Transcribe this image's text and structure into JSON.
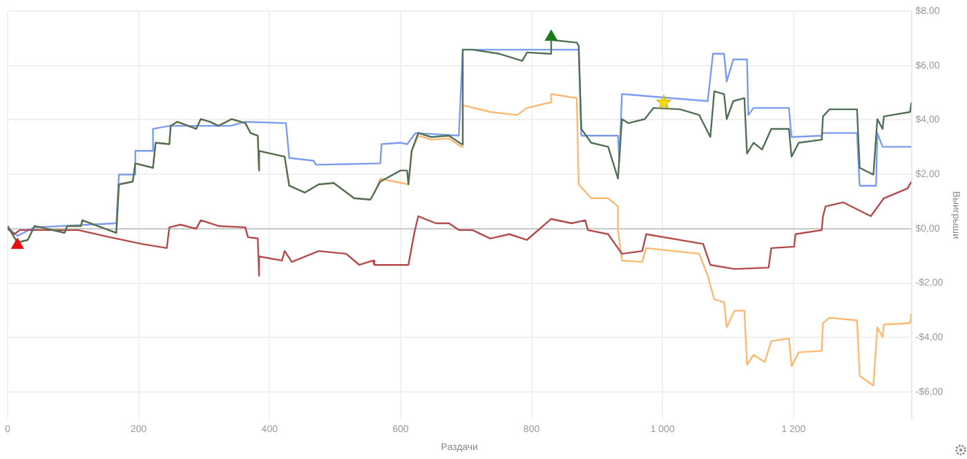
{
  "chart_data": {
    "type": "line",
    "xlabel": "Раздачи",
    "ylabel": "Выигрыши",
    "xlim": [
      0,
      1380
    ],
    "ylim": [
      -7,
      8
    ],
    "xticks": [
      0,
      200,
      400,
      600,
      800,
      {
        "value": 1000,
        "label": "1 000"
      },
      {
        "value": 1200,
        "label": "1 200"
      }
    ],
    "yticks": [
      {
        "value": 8,
        "label": "$8,00"
      },
      {
        "value": 6,
        "label": "$6,00"
      },
      {
        "value": 4,
        "label": "$4,00"
      },
      {
        "value": 2,
        "label": "$2,00"
      },
      {
        "value": 0,
        "label": "$0,00"
      },
      {
        "value": -2,
        "label": "-$2,00"
      },
      {
        "value": -4,
        "label": "-$4,00"
      },
      {
        "value": -6,
        "label": "-$6,00"
      }
    ],
    "grid": true,
    "legend": false,
    "marker": "none",
    "line_style": "solid",
    "ref_lines": [
      {
        "axis": "y",
        "value": 0,
        "color": "#c8c8c8"
      }
    ],
    "series": [
      {
        "type": "line",
        "color": "#7a9cf0",
        "x": [
          0,
          15,
          41,
          166,
          170,
          195,
          195,
          222,
          222,
          247,
          340,
          363,
          425,
          430,
          467,
          471,
          569,
          571,
          600,
          610,
          623,
          689,
          695,
          872,
          876,
          932,
          934,
          938,
          1069,
          1077,
          1094,
          1098,
          1108,
          1129,
          1131,
          1139,
          1193,
          1197,
          1243,
          1245,
          1297,
          1301,
          1326,
          1328,
          1336,
          1380
        ],
        "values": [
          0.05,
          -0.26,
          0.05,
          0.2,
          1.99,
          1.99,
          2.86,
          2.86,
          3.67,
          3.78,
          3.78,
          3.93,
          3.88,
          2.6,
          2.5,
          2.35,
          2.4,
          3.11,
          3.16,
          3.11,
          3.52,
          3.42,
          6.58,
          6.58,
          3.42,
          3.42,
          2.5,
          4.95,
          4.69,
          6.43,
          6.43,
          5.41,
          6.22,
          6.22,
          4.18,
          4.44,
          4.44,
          3.37,
          3.42,
          3.52,
          3.52,
          1.58,
          1.58,
          3.52,
          3.01,
          3.01
        ]
      },
      {
        "type": "line",
        "color": "#ffb870",
        "x": [
          0,
          10,
          15,
          31,
          41,
          87,
          91,
          112,
          114,
          166,
          170,
          191,
          195,
          222,
          226,
          247,
          249,
          259,
          288,
          295,
          309,
          322,
          342,
          363,
          371,
          382,
          384,
          384,
          423,
          430,
          454,
          475,
          498,
          529,
          554,
          560,
          569,
          612,
          617,
          627,
          647,
          674,
          693,
          695,
          737,
          778,
          793,
          828,
          830,
          869,
          872,
          891,
          917,
          932,
          932,
          938,
          969,
          975,
          1056,
          1069,
          1079,
          1094,
          1098,
          1110,
          1125,
          1129,
          1139,
          1156,
          1166,
          1193,
          1197,
          1208,
          1243,
          1245,
          1255,
          1297,
          1301,
          1322,
          1328,
          1336,
          1338,
          1378,
          1380
        ],
        "values": [
          0.1,
          -0.31,
          -0.51,
          -0.41,
          0.1,
          -0.15,
          0.1,
          0.1,
          0.31,
          -0.15,
          1.63,
          1.73,
          2.4,
          2.24,
          3.16,
          3.11,
          3.78,
          3.93,
          3.67,
          4.03,
          3.93,
          3.78,
          4.03,
          3.88,
          3.52,
          3.42,
          2.14,
          2.86,
          2.65,
          1.58,
          1.33,
          1.63,
          1.68,
          1.12,
          1.07,
          1.33,
          1.84,
          1.63,
          2.86,
          3.42,
          3.27,
          3.32,
          3.01,
          4.54,
          4.29,
          4.18,
          4.44,
          4.64,
          4.95,
          4.8,
          1.63,
          1.12,
          1.12,
          0.82,
          -0.05,
          -1.17,
          -1.22,
          -0.71,
          -0.92,
          -1.73,
          -2.6,
          -2.7,
          -3.62,
          -3.01,
          -3.01,
          -5,
          -4.64,
          -4.9,
          -4.13,
          -4.03,
          -5.05,
          -4.54,
          -4.49,
          -3.47,
          -3.27,
          -3.37,
          -5.41,
          -5.77,
          -3.62,
          -3.98,
          -3.52,
          -3.47,
          -3.11
        ]
      },
      {
        "type": "line",
        "color": "#b5484a",
        "x": [
          0,
          10,
          19,
          108,
          156,
          205,
          243,
          247,
          264,
          288,
          295,
          322,
          363,
          367,
          382,
          384,
          384,
          419,
          423,
          434,
          475,
          517,
          537,
          558,
          560,
          612,
          621,
          627,
          654,
          674,
          689,
          710,
          737,
          766,
          793,
          830,
          861,
          882,
          886,
          917,
          938,
          969,
          975,
          1062,
          1073,
          1110,
          1162,
          1166,
          1201,
          1203,
          1243,
          1245,
          1249,
          1276,
          1318,
          1338,
          1374,
          1380
        ],
        "values": [
          0,
          -0.2,
          -0.05,
          -0.05,
          -0.31,
          -0.56,
          -0.71,
          0.05,
          0.15,
          0,
          0.31,
          0.1,
          0.05,
          -0.31,
          -0.36,
          -1.73,
          -1.02,
          -1.17,
          -0.82,
          -1.22,
          -0.82,
          -0.92,
          -1.33,
          -1.17,
          -1.33,
          -1.33,
          -0.15,
          0.46,
          0.2,
          0.2,
          -0.05,
          -0.05,
          -0.36,
          -0.2,
          -0.41,
          0.36,
          0.2,
          0.31,
          -0.05,
          -0.2,
          -0.92,
          -0.82,
          -0.2,
          -0.56,
          -1.33,
          -1.48,
          -1.43,
          -0.71,
          -0.66,
          -0.2,
          -0.05,
          0.46,
          0.82,
          0.97,
          0.46,
          1.12,
          1.48,
          1.73
        ]
      },
      {
        "type": "line",
        "color": "#4f6f57",
        "x": [
          0,
          10,
          15,
          31,
          41,
          87,
          91,
          112,
          114,
          166,
          170,
          191,
          195,
          222,
          226,
          247,
          249,
          259,
          288,
          295,
          309,
          322,
          342,
          363,
          371,
          382,
          384,
          384,
          423,
          430,
          454,
          475,
          498,
          529,
          554,
          560,
          569,
          600,
          610,
          612,
          617,
          627,
          647,
          674,
          693,
          695,
          710,
          751,
          786,
          793,
          828,
          830,
          869,
          872,
          876,
          891,
          917,
          932,
          938,
          948,
          973,
          986,
          1027,
          1056,
          1073,
          1079,
          1094,
          1098,
          1108,
          1125,
          1129,
          1139,
          1152,
          1166,
          1193,
          1197,
          1208,
          1243,
          1245,
          1255,
          1297,
          1301,
          1322,
          1328,
          1336,
          1338,
          1378,
          1380
        ],
        "values": [
          0.1,
          -0.31,
          -0.51,
          -0.41,
          0.1,
          -0.15,
          0.1,
          0.1,
          0.31,
          -0.15,
          1.63,
          1.73,
          2.4,
          2.24,
          3.16,
          3.11,
          3.78,
          3.93,
          3.67,
          4.03,
          3.93,
          3.78,
          4.03,
          3.88,
          3.52,
          3.42,
          2.14,
          2.86,
          2.65,
          1.58,
          1.33,
          1.63,
          1.68,
          1.12,
          1.07,
          1.33,
          1.73,
          2.14,
          2.14,
          1.63,
          2.86,
          3.52,
          3.37,
          3.42,
          3.11,
          6.58,
          6.58,
          6.43,
          6.17,
          6.48,
          6.43,
          6.94,
          6.84,
          6.73,
          3.67,
          3.16,
          3.01,
          1.84,
          4.03,
          3.88,
          4.03,
          4.44,
          4.39,
          4.18,
          3.37,
          5.05,
          4.95,
          4.03,
          4.69,
          4.8,
          2.76,
          3.16,
          2.91,
          3.67,
          3.67,
          2.65,
          3.16,
          3.27,
          4.13,
          4.39,
          4.39,
          2.24,
          1.99,
          4.03,
          3.67,
          4.13,
          4.29,
          4.64
        ]
      },
      {
        "type": "scatter",
        "color": "#e81010",
        "marker": "triangle",
        "x": [
          15
        ],
        "values": [
          -0.6
        ]
      },
      {
        "type": "scatter",
        "color": "#1a7a1a",
        "marker": "triangle",
        "x": [
          830
        ],
        "values": [
          7.05
        ]
      },
      {
        "type": "scatter",
        "color": "#f5e000",
        "marker": "star",
        "x": [
          1002
        ],
        "values": [
          4.64
        ]
      }
    ]
  }
}
